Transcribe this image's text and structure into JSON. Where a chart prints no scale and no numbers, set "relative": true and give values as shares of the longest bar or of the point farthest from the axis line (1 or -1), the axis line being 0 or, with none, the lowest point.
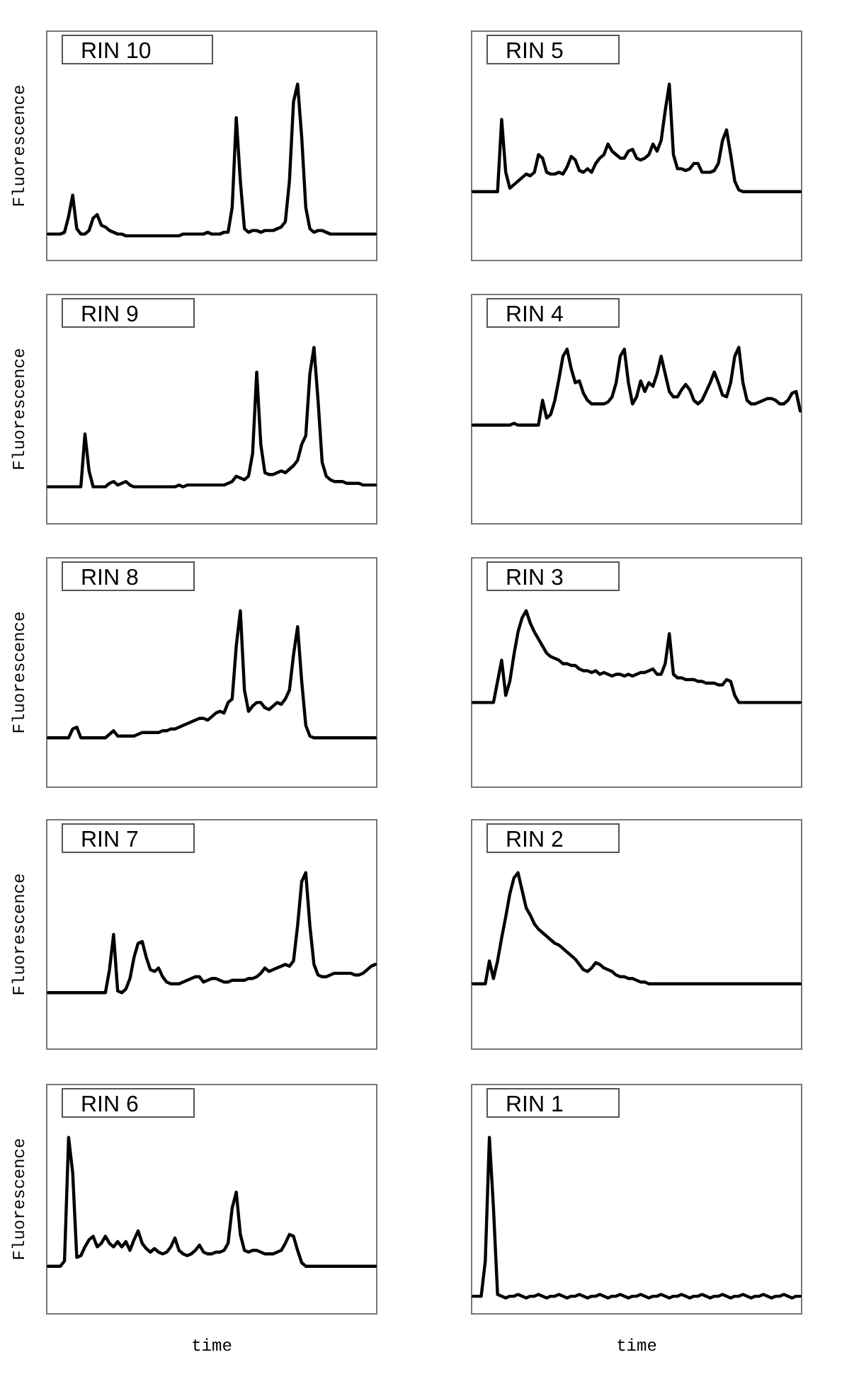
{
  "chart_data": [
    {
      "type": "line",
      "title": "RIN 10",
      "ylabel": "Fluorescence",
      "relative": true,
      "color": "#000000",
      "categories": [
        null,
        null,
        null,
        null,
        null,
        null,
        null,
        null,
        null,
        null,
        null,
        null,
        null,
        null,
        null,
        null,
        null,
        null,
        null,
        null,
        null,
        null,
        null,
        null,
        null,
        null,
        null,
        null,
        null,
        null,
        null,
        null,
        null,
        null,
        null,
        null,
        null,
        null,
        null,
        null,
        null,
        null,
        null,
        null,
        null,
        null,
        null,
        null,
        null,
        null,
        null,
        null,
        null,
        null,
        null,
        null,
        null,
        null,
        null,
        null,
        null,
        null,
        null,
        null,
        null,
        null,
        null,
        null,
        null,
        null,
        null,
        null,
        null,
        null,
        null,
        null,
        null,
        null,
        null,
        null,
        null
      ],
      "values": [
        0.15,
        0.15,
        0.15,
        0.15,
        0.16,
        0.25,
        0.37,
        0.18,
        0.15,
        0.15,
        0.17,
        0.24,
        0.26,
        0.2,
        0.19,
        0.17,
        0.16,
        0.15,
        0.15,
        0.14,
        0.14,
        0.14,
        0.14,
        0.14,
        0.14,
        0.14,
        0.14,
        0.14,
        0.14,
        0.14,
        0.14,
        0.14,
        0.14,
        0.15,
        0.15,
        0.15,
        0.15,
        0.15,
        0.15,
        0.16,
        0.15,
        0.15,
        0.15,
        0.16,
        0.16,
        0.3,
        0.81,
        0.45,
        0.18,
        0.16,
        0.17,
        0.17,
        0.16,
        0.17,
        0.17,
        0.17,
        0.18,
        0.19,
        0.22,
        0.45,
        0.9,
        1,
        0.7,
        0.3,
        0.18,
        0.16,
        0.17,
        0.17,
        0.16,
        0.15,
        0.15,
        0.15,
        0.15,
        0.15,
        0.15,
        0.15,
        0.15,
        0.15,
        0.15,
        0.15,
        0.15
      ]
    },
    {
      "type": "line",
      "title": "RIN 5",
      "relative": true,
      "color": "#000000",
      "categories": [
        null,
        null,
        null,
        null,
        null,
        null,
        null,
        null,
        null,
        null,
        null,
        null,
        null,
        null,
        null,
        null,
        null,
        null,
        null,
        null,
        null,
        null,
        null,
        null,
        null,
        null,
        null,
        null,
        null,
        null,
        null,
        null,
        null,
        null,
        null,
        null,
        null,
        null,
        null,
        null,
        null,
        null,
        null,
        null,
        null,
        null,
        null,
        null,
        null,
        null,
        null,
        null,
        null,
        null,
        null,
        null,
        null,
        null,
        null,
        null,
        null,
        null,
        null,
        null,
        null,
        null,
        null,
        null,
        null,
        null,
        null,
        null,
        null,
        null,
        null,
        null,
        null,
        null,
        null,
        null,
        null
      ],
      "values": [
        0.39,
        0.39,
        0.39,
        0.39,
        0.39,
        0.39,
        0.39,
        0.8,
        0.5,
        0.41,
        0.43,
        0.45,
        0.47,
        0.49,
        0.48,
        0.5,
        0.6,
        0.58,
        0.5,
        0.49,
        0.49,
        0.5,
        0.49,
        0.53,
        0.59,
        0.57,
        0.51,
        0.5,
        0.52,
        0.5,
        0.55,
        0.58,
        0.6,
        0.66,
        0.62,
        0.6,
        0.58,
        0.58,
        0.62,
        0.63,
        0.58,
        0.57,
        0.58,
        0.6,
        0.66,
        0.62,
        0.68,
        0.85,
        1,
        0.6,
        0.52,
        0.52,
        0.51,
        0.52,
        0.55,
        0.55,
        0.5,
        0.5,
        0.5,
        0.51,
        0.55,
        0.68,
        0.74,
        0.6,
        0.45,
        0.4,
        0.39,
        0.39,
        0.39,
        0.39,
        0.39,
        0.39,
        0.39,
        0.39,
        0.39,
        0.39,
        0.39,
        0.39,
        0.39,
        0.39,
        0.39
      ]
    },
    {
      "type": "line",
      "title": "RIN 9",
      "ylabel": "Fluorescence",
      "relative": true,
      "color": "#000000",
      "categories": [
        null,
        null,
        null,
        null,
        null,
        null,
        null,
        null,
        null,
        null,
        null,
        null,
        null,
        null,
        null,
        null,
        null,
        null,
        null,
        null,
        null,
        null,
        null,
        null,
        null,
        null,
        null,
        null,
        null,
        null,
        null,
        null,
        null,
        null,
        null,
        null,
        null,
        null,
        null,
        null,
        null,
        null,
        null,
        null,
        null,
        null,
        null,
        null,
        null,
        null,
        null,
        null,
        null,
        null,
        null,
        null,
        null,
        null,
        null,
        null,
        null,
        null,
        null,
        null,
        null,
        null,
        null,
        null,
        null,
        null,
        null,
        null,
        null,
        null,
        null,
        null,
        null,
        null,
        null,
        null,
        null
      ],
      "values": [
        0.21,
        0.21,
        0.21,
        0.21,
        0.21,
        0.21,
        0.21,
        0.21,
        0.21,
        0.51,
        0.3,
        0.21,
        0.21,
        0.21,
        0.21,
        0.23,
        0.24,
        0.22,
        0.23,
        0.24,
        0.22,
        0.21,
        0.21,
        0.21,
        0.21,
        0.21,
        0.21,
        0.21,
        0.21,
        0.21,
        0.21,
        0.21,
        0.22,
        0.21,
        0.22,
        0.22,
        0.22,
        0.22,
        0.22,
        0.22,
        0.22,
        0.22,
        0.22,
        0.22,
        0.23,
        0.24,
        0.27,
        0.26,
        0.25,
        0.27,
        0.4,
        0.86,
        0.45,
        0.29,
        0.28,
        0.28,
        0.29,
        0.3,
        0.29,
        0.31,
        0.33,
        0.36,
        0.45,
        0.5,
        0.85,
        1,
        0.7,
        0.35,
        0.27,
        0.25,
        0.24,
        0.24,
        0.24,
        0.23,
        0.23,
        0.23,
        0.23,
        0.22,
        0.22,
        0.22,
        0.22
      ]
    },
    {
      "type": "line",
      "title": "RIN 4",
      "relative": true,
      "color": "#000000",
      "categories": [
        null,
        null,
        null,
        null,
        null,
        null,
        null,
        null,
        null,
        null,
        null,
        null,
        null,
        null,
        null,
        null,
        null,
        null,
        null,
        null,
        null,
        null,
        null,
        null,
        null,
        null,
        null,
        null,
        null,
        null,
        null,
        null,
        null,
        null,
        null,
        null,
        null,
        null,
        null,
        null,
        null,
        null,
        null,
        null,
        null,
        null,
        null,
        null,
        null,
        null,
        null,
        null,
        null,
        null,
        null,
        null,
        null,
        null,
        null,
        null,
        null,
        null,
        null,
        null,
        null,
        null,
        null,
        null,
        null,
        null,
        null,
        null,
        null,
        null,
        null,
        null,
        null,
        null,
        null,
        null,
        null
      ],
      "values": [
        0.56,
        0.56,
        0.56,
        0.56,
        0.56,
        0.56,
        0.56,
        0.56,
        0.56,
        0.56,
        0.57,
        0.56,
        0.56,
        0.56,
        0.56,
        0.56,
        0.56,
        0.7,
        0.6,
        0.62,
        0.7,
        0.82,
        0.95,
        0.99,
        0.88,
        0.8,
        0.81,
        0.74,
        0.7,
        0.68,
        0.68,
        0.68,
        0.68,
        0.69,
        0.72,
        0.8,
        0.95,
        0.99,
        0.8,
        0.68,
        0.72,
        0.81,
        0.75,
        0.8,
        0.78,
        0.85,
        0.95,
        0.85,
        0.75,
        0.72,
        0.72,
        0.76,
        0.79,
        0.76,
        0.7,
        0.68,
        0.7,
        0.75,
        0.8,
        0.86,
        0.8,
        0.73,
        0.72,
        0.8,
        0.95,
        1,
        0.8,
        0.7,
        0.68,
        0.68,
        0.69,
        0.7,
        0.71,
        0.71,
        0.7,
        0.68,
        0.68,
        0.7,
        0.74,
        0.75,
        0.64
      ]
    },
    {
      "type": "line",
      "title": "RIN 8",
      "ylabel": "Fluorescence",
      "relative": true,
      "color": "#000000",
      "categories": [
        null,
        null,
        null,
        null,
        null,
        null,
        null,
        null,
        null,
        null,
        null,
        null,
        null,
        null,
        null,
        null,
        null,
        null,
        null,
        null,
        null,
        null,
        null,
        null,
        null,
        null,
        null,
        null,
        null,
        null,
        null,
        null,
        null,
        null,
        null,
        null,
        null,
        null,
        null,
        null,
        null,
        null,
        null,
        null,
        null,
        null,
        null,
        null,
        null,
        null,
        null,
        null,
        null,
        null,
        null,
        null,
        null,
        null,
        null,
        null,
        null,
        null,
        null,
        null,
        null,
        null,
        null,
        null,
        null,
        null,
        null,
        null,
        null,
        null,
        null,
        null,
        null,
        null,
        null,
        null,
        null
      ],
      "values": [
        0.28,
        0.28,
        0.28,
        0.28,
        0.28,
        0.28,
        0.33,
        0.34,
        0.28,
        0.28,
        0.28,
        0.28,
        0.28,
        0.28,
        0.28,
        0.3,
        0.32,
        0.29,
        0.29,
        0.29,
        0.29,
        0.29,
        0.3,
        0.31,
        0.31,
        0.31,
        0.31,
        0.31,
        0.32,
        0.32,
        0.33,
        0.33,
        0.34,
        0.35,
        0.36,
        0.37,
        0.38,
        0.39,
        0.39,
        0.38,
        0.4,
        0.42,
        0.43,
        0.42,
        0.48,
        0.5,
        0.8,
        1,
        0.55,
        0.43,
        0.46,
        0.48,
        0.48,
        0.45,
        0.44,
        0.46,
        0.48,
        0.47,
        0.5,
        0.55,
        0.75,
        0.91,
        0.6,
        0.35,
        0.29,
        0.28,
        0.28,
        0.28,
        0.28,
        0.28,
        0.28,
        0.28,
        0.28,
        0.28,
        0.28,
        0.28,
        0.28,
        0.28,
        0.28,
        0.28,
        0.28
      ]
    },
    {
      "type": "line",
      "title": "RIN 3",
      "relative": true,
      "color": "#000000",
      "categories": [
        null,
        null,
        null,
        null,
        null,
        null,
        null,
        null,
        null,
        null,
        null,
        null,
        null,
        null,
        null,
        null,
        null,
        null,
        null,
        null,
        null,
        null,
        null,
        null,
        null,
        null,
        null,
        null,
        null,
        null,
        null,
        null,
        null,
        null,
        null,
        null,
        null,
        null,
        null,
        null,
        null,
        null,
        null,
        null,
        null,
        null,
        null,
        null,
        null,
        null,
        null,
        null,
        null,
        null,
        null,
        null,
        null,
        null,
        null,
        null,
        null,
        null,
        null,
        null,
        null,
        null,
        null,
        null,
        null,
        null,
        null,
        null,
        null,
        null,
        null,
        null,
        null,
        null,
        null,
        null,
        null
      ],
      "values": [
        0.48,
        0.48,
        0.48,
        0.48,
        0.48,
        0.48,
        0.6,
        0.72,
        0.52,
        0.6,
        0.75,
        0.88,
        0.96,
        1,
        0.93,
        0.88,
        0.84,
        0.8,
        0.76,
        0.74,
        0.73,
        0.72,
        0.7,
        0.7,
        0.69,
        0.69,
        0.67,
        0.66,
        0.66,
        0.65,
        0.66,
        0.64,
        0.65,
        0.64,
        0.63,
        0.64,
        0.64,
        0.63,
        0.64,
        0.63,
        0.64,
        0.65,
        0.65,
        0.66,
        0.67,
        0.64,
        0.64,
        0.7,
        0.87,
        0.64,
        0.62,
        0.62,
        0.61,
        0.61,
        0.61,
        0.6,
        0.6,
        0.59,
        0.59,
        0.59,
        0.58,
        0.58,
        0.61,
        0.6,
        0.52,
        0.48,
        0.48,
        0.48,
        0.48,
        0.48,
        0.48,
        0.48,
        0.48,
        0.48,
        0.48,
        0.48,
        0.48,
        0.48,
        0.48,
        0.48,
        0.48
      ]
    },
    {
      "type": "line",
      "title": "RIN 7",
      "ylabel": "Fluorescence",
      "relative": true,
      "color": "#000000",
      "categories": [
        null,
        null,
        null,
        null,
        null,
        null,
        null,
        null,
        null,
        null,
        null,
        null,
        null,
        null,
        null,
        null,
        null,
        null,
        null,
        null,
        null,
        null,
        null,
        null,
        null,
        null,
        null,
        null,
        null,
        null,
        null,
        null,
        null,
        null,
        null,
        null,
        null,
        null,
        null,
        null,
        null,
        null,
        null,
        null,
        null,
        null,
        null,
        null,
        null,
        null,
        null,
        null,
        null,
        null,
        null,
        null,
        null,
        null,
        null,
        null,
        null,
        null,
        null,
        null,
        null,
        null,
        null,
        null,
        null,
        null,
        null,
        null,
        null,
        null,
        null,
        null,
        null,
        null,
        null,
        null,
        null
      ],
      "values": [
        0.32,
        0.32,
        0.32,
        0.32,
        0.32,
        0.32,
        0.32,
        0.32,
        0.32,
        0.32,
        0.32,
        0.32,
        0.32,
        0.32,
        0.32,
        0.45,
        0.65,
        0.33,
        0.32,
        0.34,
        0.4,
        0.52,
        0.6,
        0.61,
        0.52,
        0.45,
        0.44,
        0.46,
        0.41,
        0.38,
        0.37,
        0.37,
        0.37,
        0.38,
        0.39,
        0.4,
        0.41,
        0.41,
        0.38,
        0.39,
        0.4,
        0.4,
        0.39,
        0.38,
        0.38,
        0.39,
        0.39,
        0.39,
        0.39,
        0.4,
        0.4,
        0.41,
        0.43,
        0.46,
        0.44,
        0.45,
        0.46,
        0.47,
        0.48,
        0.47,
        0.5,
        0.7,
        0.95,
        1,
        0.7,
        0.48,
        0.42,
        0.41,
        0.41,
        0.42,
        0.43,
        0.43,
        0.43,
        0.43,
        0.43,
        0.42,
        0.42,
        0.43,
        0.45,
        0.47,
        0.48
      ]
    },
    {
      "type": "line",
      "title": "RIN 2",
      "relative": true,
      "color": "#000000",
      "categories": [
        null,
        null,
        null,
        null,
        null,
        null,
        null,
        null,
        null,
        null,
        null,
        null,
        null,
        null,
        null,
        null,
        null,
        null,
        null,
        null,
        null,
        null,
        null,
        null,
        null,
        null,
        null,
        null,
        null,
        null,
        null,
        null,
        null,
        null,
        null,
        null,
        null,
        null,
        null,
        null,
        null,
        null,
        null,
        null,
        null,
        null,
        null,
        null,
        null,
        null,
        null,
        null,
        null,
        null,
        null,
        null,
        null,
        null,
        null,
        null,
        null,
        null,
        null,
        null,
        null,
        null,
        null,
        null,
        null,
        null,
        null,
        null,
        null,
        null,
        null,
        null,
        null,
        null,
        null,
        null,
        null
      ],
      "values": [
        0.37,
        0.37,
        0.37,
        0.37,
        0.5,
        0.4,
        0.5,
        0.63,
        0.75,
        0.88,
        0.97,
        1,
        0.9,
        0.8,
        0.76,
        0.71,
        0.68,
        0.66,
        0.64,
        0.62,
        0.6,
        0.59,
        0.57,
        0.55,
        0.53,
        0.51,
        0.48,
        0.45,
        0.44,
        0.46,
        0.49,
        0.48,
        0.46,
        0.45,
        0.44,
        0.42,
        0.41,
        0.41,
        0.4,
        0.4,
        0.39,
        0.38,
        0.38,
        0.37,
        0.37,
        0.37,
        0.37,
        0.37,
        0.37,
        0.37,
        0.37,
        0.37,
        0.37,
        0.37,
        0.37,
        0.37,
        0.37,
        0.37,
        0.37,
        0.37,
        0.37,
        0.37,
        0.37,
        0.37,
        0.37,
        0.37,
        0.37,
        0.37,
        0.37,
        0.37,
        0.37,
        0.37,
        0.37,
        0.37,
        0.37,
        0.37,
        0.37,
        0.37,
        0.37,
        0.37,
        0.37
      ]
    },
    {
      "type": "line",
      "title": "RIN 6",
      "ylabel": "Fluorescence",
      "xlabel": "time",
      "relative": true,
      "color": "#000000",
      "categories": [
        null,
        null,
        null,
        null,
        null,
        null,
        null,
        null,
        null,
        null,
        null,
        null,
        null,
        null,
        null,
        null,
        null,
        null,
        null,
        null,
        null,
        null,
        null,
        null,
        null,
        null,
        null,
        null,
        null,
        null,
        null,
        null,
        null,
        null,
        null,
        null,
        null,
        null,
        null,
        null,
        null,
        null,
        null,
        null,
        null,
        null,
        null,
        null,
        null,
        null,
        null,
        null,
        null,
        null,
        null,
        null,
        null,
        null,
        null,
        null,
        null,
        null,
        null,
        null,
        null,
        null,
        null,
        null,
        null,
        null,
        null,
        null,
        null,
        null,
        null,
        null,
        null,
        null,
        null,
        null,
        null
      ],
      "values": [
        0.27,
        0.27,
        0.27,
        0.27,
        0.3,
        1,
        0.8,
        0.32,
        0.33,
        0.38,
        0.42,
        0.44,
        0.38,
        0.4,
        0.44,
        0.4,
        0.38,
        0.41,
        0.38,
        0.41,
        0.36,
        0.42,
        0.47,
        0.4,
        0.37,
        0.35,
        0.37,
        0.35,
        0.34,
        0.35,
        0.38,
        0.43,
        0.36,
        0.34,
        0.33,
        0.34,
        0.36,
        0.39,
        0.35,
        0.34,
        0.34,
        0.35,
        0.35,
        0.36,
        0.4,
        0.6,
        0.69,
        0.45,
        0.36,
        0.35,
        0.36,
        0.36,
        0.35,
        0.34,
        0.34,
        0.34,
        0.35,
        0.36,
        0.4,
        0.45,
        0.44,
        0.36,
        0.29,
        0.27,
        0.27,
        0.27,
        0.27,
        0.27,
        0.27,
        0.27,
        0.27,
        0.27,
        0.27,
        0.27,
        0.27,
        0.27,
        0.27,
        0.27,
        0.27,
        0.27,
        0.27
      ]
    },
    {
      "type": "line",
      "title": "RIN 1",
      "xlabel": "time",
      "relative": true,
      "color": "#000000",
      "categories": [
        null,
        null,
        null,
        null,
        null,
        null,
        null,
        null,
        null,
        null,
        null,
        null,
        null,
        null,
        null,
        null,
        null,
        null,
        null,
        null,
        null,
        null,
        null,
        null,
        null,
        null,
        null,
        null,
        null,
        null,
        null,
        null,
        null,
        null,
        null,
        null,
        null,
        null,
        null,
        null,
        null,
        null,
        null,
        null,
        null,
        null,
        null,
        null,
        null,
        null,
        null,
        null,
        null,
        null,
        null,
        null,
        null,
        null,
        null,
        null,
        null,
        null,
        null,
        null,
        null,
        null,
        null,
        null,
        null,
        null,
        null,
        null,
        null,
        null,
        null,
        null,
        null,
        null,
        null,
        null,
        null
      ],
      "values": [
        0.1,
        0.1,
        0.1,
        0.3,
        1,
        0.6,
        0.11,
        0.1,
        0.09,
        0.1,
        0.1,
        0.11,
        0.1,
        0.09,
        0.1,
        0.1,
        0.11,
        0.1,
        0.09,
        0.1,
        0.1,
        0.11,
        0.1,
        0.09,
        0.1,
        0.1,
        0.11,
        0.1,
        0.09,
        0.1,
        0.1,
        0.11,
        0.1,
        0.09,
        0.1,
        0.1,
        0.11,
        0.1,
        0.09,
        0.1,
        0.1,
        0.11,
        0.1,
        0.09,
        0.1,
        0.1,
        0.11,
        0.1,
        0.09,
        0.1,
        0.1,
        0.11,
        0.1,
        0.09,
        0.1,
        0.1,
        0.11,
        0.1,
        0.09,
        0.1,
        0.1,
        0.11,
        0.1,
        0.09,
        0.1,
        0.1,
        0.11,
        0.1,
        0.09,
        0.1,
        0.1,
        0.11,
        0.1,
        0.09,
        0.1,
        0.1,
        0.11,
        0.1,
        0.09,
        0.1,
        0.1
      ]
    }
  ]
}
